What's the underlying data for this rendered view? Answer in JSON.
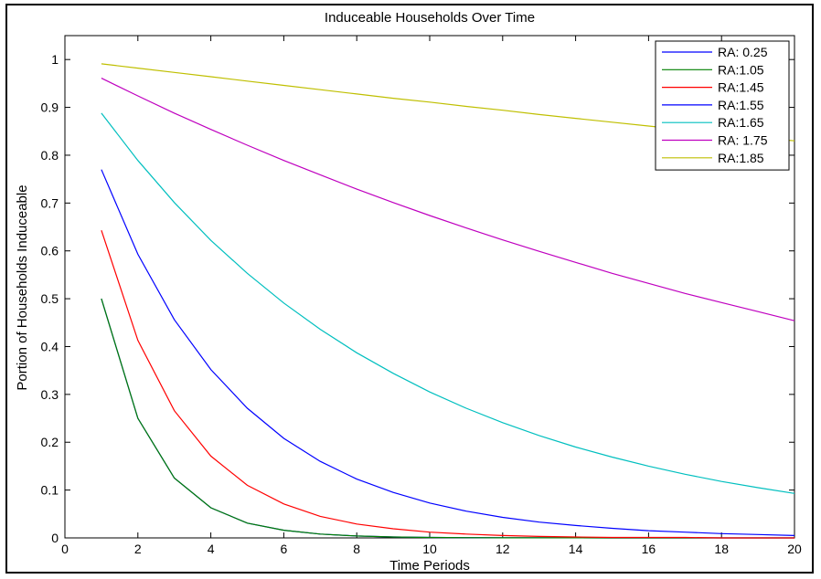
{
  "chart_data": {
    "type": "line",
    "title": "Induceable Households Over Time",
    "xlabel": "Time Periods",
    "ylabel": "Portion of Households Induceable",
    "xlim": [
      0,
      20
    ],
    "ylim": [
      0,
      1.05
    ],
    "xticks": [
      0,
      2,
      4,
      6,
      8,
      10,
      12,
      14,
      16,
      18,
      20
    ],
    "yticks": [
      0,
      0.1,
      0.2,
      0.3,
      0.4,
      0.5,
      0.6,
      0.7,
      0.8,
      0.9,
      1
    ],
    "grid": false,
    "legend_position": "top-right",
    "x": [
      1,
      2,
      3,
      4,
      5,
      6,
      7,
      8,
      9,
      10,
      11,
      12,
      13,
      14,
      15,
      16,
      17,
      18,
      19,
      20
    ],
    "series": [
      {
        "name": "RA: 0.25",
        "color": "#0000ff",
        "values": [
          0.5,
          0.25,
          0.125,
          0.063,
          0.031,
          0.016,
          0.008,
          0.004,
          0.002,
          0.001,
          0.0005,
          0.0002,
          0.0001,
          0.0001,
          0,
          0,
          0,
          0,
          0,
          0
        ]
      },
      {
        "name": "RA:1.05",
        "color": "#008000",
        "values": [
          0.5,
          0.25,
          0.125,
          0.063,
          0.031,
          0.016,
          0.008,
          0.004,
          0.002,
          0.001,
          0.0005,
          0.0002,
          0.0001,
          0.0001,
          0,
          0,
          0,
          0,
          0,
          0
        ]
      },
      {
        "name": "RA:1.45",
        "color": "#ff0000",
        "values": [
          0.643,
          0.413,
          0.266,
          0.171,
          0.11,
          0.071,
          0.045,
          0.029,
          0.019,
          0.012,
          0.008,
          0.005,
          0.003,
          0.002,
          0.001,
          0.001,
          0.001,
          0,
          0,
          0
        ]
      },
      {
        "name": "RA:1.55",
        "color": "#0000ff",
        "values": [
          0.77,
          0.593,
          0.456,
          0.352,
          0.271,
          0.208,
          0.16,
          0.123,
          0.095,
          0.073,
          0.056,
          0.043,
          0.033,
          0.026,
          0.02,
          0.015,
          0.012,
          0.009,
          0.007,
          0.005
        ]
      },
      {
        "name": "RA:1.65",
        "color": "#00bfbf",
        "values": [
          0.888,
          0.789,
          0.701,
          0.622,
          0.553,
          0.491,
          0.436,
          0.387,
          0.344,
          0.305,
          0.271,
          0.241,
          0.214,
          0.19,
          0.169,
          0.15,
          0.133,
          0.118,
          0.105,
          0.093
        ]
      },
      {
        "name": "RA: 1.75",
        "color": "#bf00bf",
        "values": [
          0.961,
          0.924,
          0.888,
          0.854,
          0.821,
          0.789,
          0.759,
          0.729,
          0.701,
          0.674,
          0.648,
          0.623,
          0.599,
          0.576,
          0.553,
          0.532,
          0.511,
          0.492,
          0.473,
          0.454
        ]
      },
      {
        "name": "RA:1.85",
        "color": "#bfbf00",
        "values": [
          0.991,
          0.982,
          0.973,
          0.964,
          0.955,
          0.946,
          0.937,
          0.928,
          0.919,
          0.911,
          0.902,
          0.894,
          0.885,
          0.877,
          0.869,
          0.861,
          0.853,
          0.845,
          0.837,
          0.83
        ]
      }
    ]
  }
}
